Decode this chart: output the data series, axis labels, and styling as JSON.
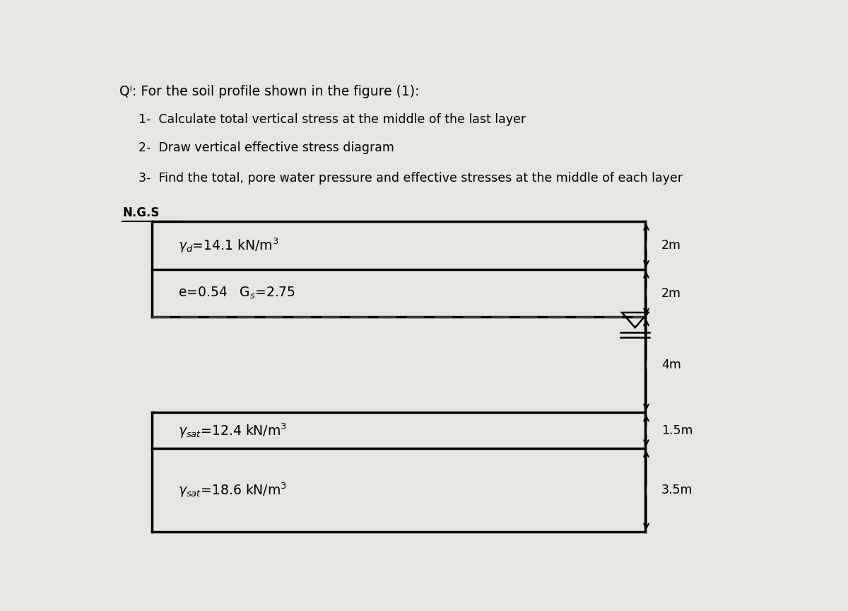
{
  "title": "Qᴵ: For the soil profile shown in the figure (1):",
  "questions": [
    "1-  Calculate total vertical stress at the middle of the last layer",
    "2-  Draw vertical effective stress diagram",
    "3-  Find the total, pore water pressure and effective stresses at the middle of each layer"
  ],
  "ngs_label": "N.G.S",
  "layer1_label": "$\\gamma_d$=14.1 kN/m$^3$",
  "layer2_label": "e=0.54   G$_s$=2.75",
  "layer3_label": "$\\gamma_{sat}$=12.4 kN/m$^3$",
  "layer4_label": "$\\gamma_{sat}$=18.6 kN/m$^3$",
  "dim_labels": [
    "2m",
    "2m",
    "4m",
    "1.5m",
    "3.5m"
  ],
  "total_depth_m": 13.0,
  "layer_depths": [
    0,
    2,
    4,
    8,
    9.5,
    13
  ],
  "water_table_depth": 4,
  "bg_color": "#e8e6e2",
  "box_bg": "#ffffff",
  "border_color": "#000000",
  "text_color": "#000000",
  "dashed_color": "#444444"
}
